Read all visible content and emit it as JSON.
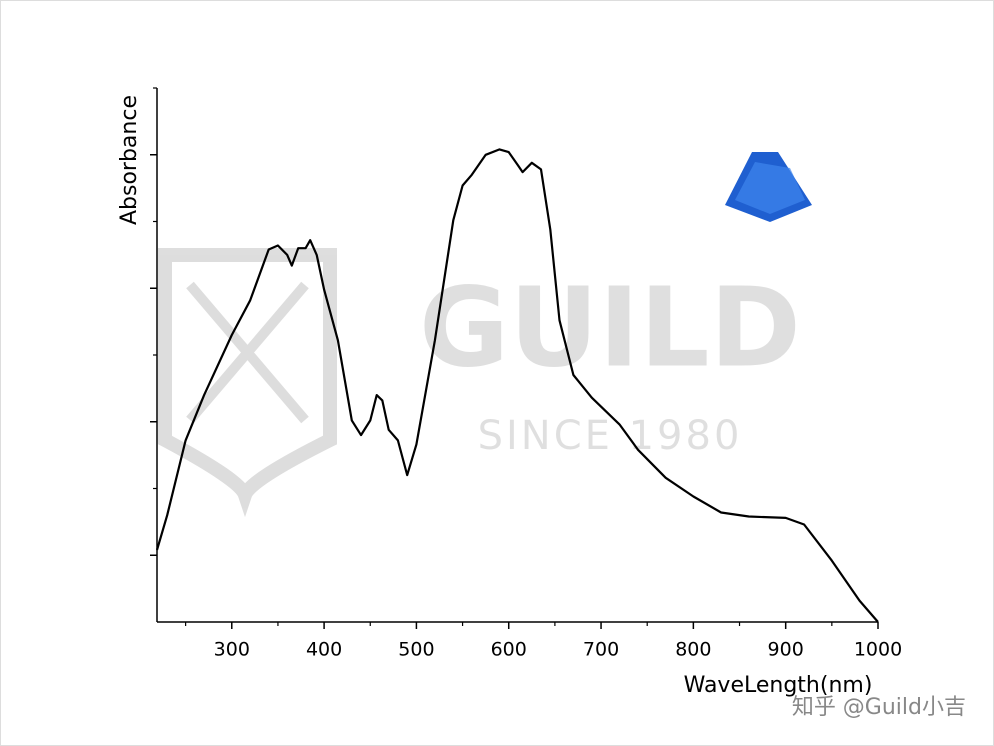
{
  "chart_data": {
    "type": "line",
    "y_label": "Absorbance",
    "x_label": "WaveLength(nm)",
    "watermark": [
      "GUILD",
      "SINCE 1980"
    ],
    "credit": "知乎 @Guild小吉",
    "x": [
      219,
      230,
      250,
      270,
      300,
      320,
      340,
      350,
      360,
      365,
      372,
      380,
      385,
      392,
      400,
      415,
      430,
      440,
      450,
      457,
      463,
      470,
      480,
      490,
      500,
      520,
      540,
      550,
      560,
      575,
      590,
      600,
      610,
      615,
      625,
      635,
      645,
      655,
      670,
      690,
      720,
      740,
      770,
      800,
      830,
      860,
      900,
      920,
      950,
      980,
      1000
    ],
    "series": [
      {
        "color": "#000000",
        "values": [
          0.54,
          0.8,
          1.36,
          1.7,
          2.15,
          2.41,
          2.79,
          2.82,
          2.75,
          2.67,
          2.8,
          2.8,
          2.86,
          2.75,
          2.49,
          2.11,
          1.51,
          1.4,
          1.51,
          1.7,
          1.66,
          1.44,
          1.36,
          1.1,
          1.33,
          2.11,
          3.01,
          3.27,
          3.35,
          3.5,
          3.54,
          3.52,
          3.42,
          3.37,
          3.44,
          3.39,
          2.94,
          2.26,
          1.85,
          1.68,
          1.48,
          1.29,
          1.08,
          0.94,
          0.82,
          0.79,
          0.78,
          0.73,
          0.46,
          0.16,
          0
        ]
      }
    ],
    "xlim": [
      219,
      1000
    ],
    "xticks": [
      300,
      400,
      500,
      600,
      700,
      800,
      900,
      1000
    ],
    "xticks_minor": [
      250,
      350,
      450,
      550,
      650,
      750,
      850,
      950
    ],
    "ylim": [
      0,
      4
    ],
    "yticks": [
      0.5,
      1.5,
      2.5,
      3.5
    ],
    "yticks_minor": [
      1,
      2,
      3,
      4
    ],
    "ytick_labels": false,
    "grid": false
  }
}
